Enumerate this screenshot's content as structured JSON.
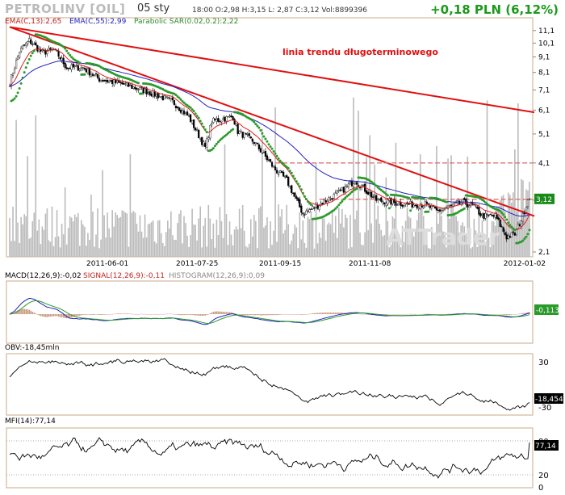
{
  "header": {
    "title": "PETROLINV [OIL]",
    "date": "05 sty",
    "ohlc": "18:00  O:2,98  H:3,15  L: 2,87  C:3,12  Vol:8899396",
    "change": "+0,18 PLN (6,12%)"
  },
  "colors": {
    "ema13": "#e02020",
    "ema55": "#2020c0",
    "sar": "#2a9a2a",
    "trend": "#e01010",
    "volume": "#bbbbbb",
    "candle": "#000000",
    "panel_border": "#c9a98a",
    "change": "#1a9a1a"
  },
  "price_panel": {
    "legend": {
      "ema13": "EMA(C,13):2,65",
      "ema55": "EMA(C,55):2,99",
      "sar": "Parabolic SAR(0.02,0.2):2,22"
    },
    "annotation": "linia trendu długoterminowego",
    "watermark": "ATTrader",
    "last_price_label": "3,12",
    "y_ticks": [
      "11,1",
      "10,1",
      "9,1",
      "8,1",
      "7,1",
      "6,1",
      "5,1",
      "4,1",
      "3,1",
      "2,1"
    ],
    "x_ticks": [
      "2011-06-01",
      "2011-07-25",
      "2011-09-15",
      "2011-11-08",
      "2012-01-02"
    ]
  },
  "macd_panel": {
    "legend": {
      "macd": "MACD(12,26,9):-0,02",
      "signal": "SIGNAL(12,26,9):-0,11",
      "histogram": "HISTOGRAM(12,26,9):0,09"
    },
    "last_label": "-0,113"
  },
  "obv_panel": {
    "legend": "OBV:-18,45mln",
    "y_ticks": [
      "30",
      "-30"
    ],
    "last_label": "-18,454"
  },
  "mfi_panel": {
    "legend": "MFI(14):77,14",
    "y_ticks": [
      "80",
      "20",
      "0"
    ],
    "last_label": "77,14"
  },
  "chart_data": [
    {
      "type": "candlestick",
      "title": "PETROLINV [OIL]",
      "x_range": [
        "2011-05-01",
        "2012-01-05"
      ],
      "y_range": [
        2.1,
        11.5
      ],
      "y_scale": "log",
      "x_ticks": [
        "2011-06-01",
        "2011-07-25",
        "2011-09-15",
        "2011-11-08",
        "2012-01-02"
      ],
      "close_series": [
        [
          0,
          7.5
        ],
        [
          6,
          9.5
        ],
        [
          12,
          10.3
        ],
        [
          20,
          9.4
        ],
        [
          27,
          9.6
        ],
        [
          30,
          9.2
        ],
        [
          35,
          8.4
        ],
        [
          45,
          8.4
        ],
        [
          55,
          7.7
        ],
        [
          70,
          7.4
        ],
        [
          85,
          7.0
        ],
        [
          100,
          6.5
        ],
        [
          110,
          5.8
        ],
        [
          120,
          4.6
        ],
        [
          124,
          5.6
        ],
        [
          130,
          5.7
        ],
        [
          137,
          5.8
        ],
        [
          140,
          5.2
        ],
        [
          150,
          4.8
        ],
        [
          163,
          3.9
        ],
        [
          170,
          3.6
        ],
        [
          180,
          2.8
        ],
        [
          190,
          3.0
        ],
        [
          203,
          3.3
        ],
        [
          212,
          3.6
        ],
        [
          225,
          3.1
        ],
        [
          235,
          3.05
        ],
        [
          245,
          3.0
        ],
        [
          255,
          3.0
        ],
        [
          262,
          2.85
        ],
        [
          270,
          2.95
        ],
        [
          278,
          3.05
        ],
        [
          285,
          2.95
        ],
        [
          290,
          2.75
        ],
        [
          298,
          2.75
        ],
        [
          305,
          2.35
        ],
        [
          310,
          2.4
        ],
        [
          315,
          2.75
        ],
        [
          318,
          3.12
        ]
      ],
      "sar_last": 2.22,
      "ema13_last": 2.65,
      "ema55_last": 2.99,
      "last_close": 3.12,
      "horizontal_levels": [
        4.1,
        3.12
      ],
      "trendlines": [
        {
          "label": "linia trendu długoterminowego",
          "from": [
            0,
            11.4
          ],
          "to": [
            320,
            6.0
          ]
        },
        {
          "from": [
            0,
            11.4
          ],
          "to": [
            320,
            2.75
          ]
        }
      ]
    },
    {
      "type": "line",
      "series": [
        {
          "name": "MACD(12,26,9)",
          "last": -0.02
        },
        {
          "name": "SIGNAL(12,26,9)",
          "last": -0.11
        },
        {
          "name": "HISTOGRAM(12,26,9)",
          "last": 0.09
        }
      ]
    },
    {
      "type": "line",
      "series": [
        {
          "name": "OBV",
          "last": -18.454
        }
      ],
      "y_ticks": [
        30,
        -30
      ]
    },
    {
      "type": "line",
      "series": [
        {
          "name": "MFI(14)",
          "last": 77.14
        }
      ],
      "y_ticks": [
        80,
        20,
        0
      ]
    }
  ]
}
